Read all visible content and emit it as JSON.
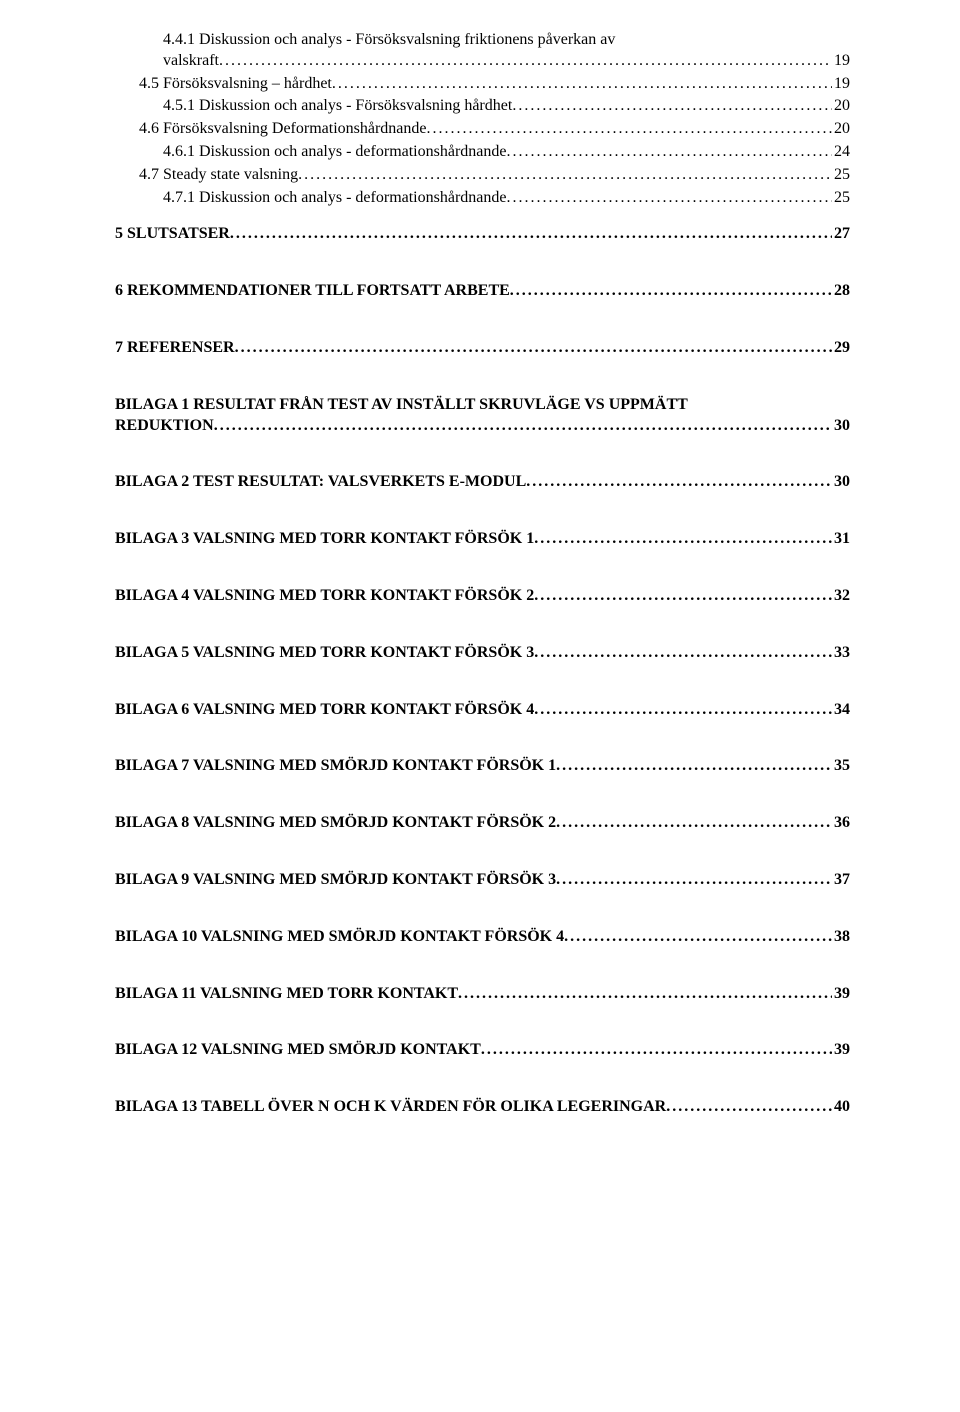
{
  "toc": {
    "section4_sub": [
      {
        "label": "4.4.1 Diskussion och analys - Försöksvalsning friktionens påverkan av valskraft",
        "page": "19",
        "wrap": true
      },
      {
        "label": "4.5 Försöksvalsning – hårdhet",
        "page": "19"
      },
      {
        "label": "4.5.1 Diskussion och analys - Försöksvalsning hårdhet",
        "page": "20"
      },
      {
        "label": "4.6 Försöksvalsning Deformationshårdnande",
        "page": "20"
      },
      {
        "label": "4.6.1 Diskussion och analys - deformationshårdnande",
        "page": "24"
      },
      {
        "label": "4.7 Steady state valsning",
        "page": "25"
      },
      {
        "label": "4.7.1  Diskussion och analys - deformationshårdnande",
        "page": "25"
      }
    ],
    "main": [
      {
        "label": "5 SLUTSATSER",
        "page": "27"
      },
      {
        "label": "6 REKOMMENDATIONER TILL FORTSATT ARBETE",
        "page": "28"
      },
      {
        "label": "7 REFERENSER",
        "page": "29"
      },
      {
        "label": "BILAGA 1 RESULTAT FRÅN TEST AV INSTÄLLT SKRUVLÄGE VS UPPMÄTT REDUKTION",
        "page": "30",
        "wrap": true
      },
      {
        "label": "BILAGA 2 TEST RESULTAT: VALSVERKETS E-MODUL",
        "page": "30"
      },
      {
        "label": "BILAGA 3 VALSNING MED TORR KONTAKT FÖRSÖK 1",
        "page": "31"
      },
      {
        "label": "BILAGA 4 VALSNING MED TORR KONTAKT FÖRSÖK 2",
        "page": "32"
      },
      {
        "label": "BILAGA 5 VALSNING MED TORR KONTAKT FÖRSÖK 3",
        "page": "33"
      },
      {
        "label": "BILAGA 6 VALSNING MED TORR KONTAKT FÖRSÖK 4",
        "page": "34"
      },
      {
        "label": "BILAGA 7 VALSNING MED SMÖRJD KONTAKT FÖRSÖK 1",
        "page": "35"
      },
      {
        "label": "BILAGA 8 VALSNING MED SMÖRJD KONTAKT FÖRSÖK 2",
        "page": "36"
      },
      {
        "label": "BILAGA 9 VALSNING MED SMÖRJD KONTAKT FÖRSÖK 3",
        "page": "37"
      },
      {
        "label": "BILAGA 10 VALSNING MED SMÖRJD KONTAKT FÖRSÖK 4",
        "page": "38"
      },
      {
        "label": "BILAGA 11 VALSNING MED TORR KONTAKT",
        "page": "39"
      },
      {
        "label": "BILAGA 12 VALSNING MED SMÖRJD KONTAKT",
        "page": "39"
      },
      {
        "label": "BILAGA 13 TABELL ÖVER N OCH K VÄRDEN FÖR OLIKA LEGERINGAR",
        "page": "40"
      }
    ]
  }
}
